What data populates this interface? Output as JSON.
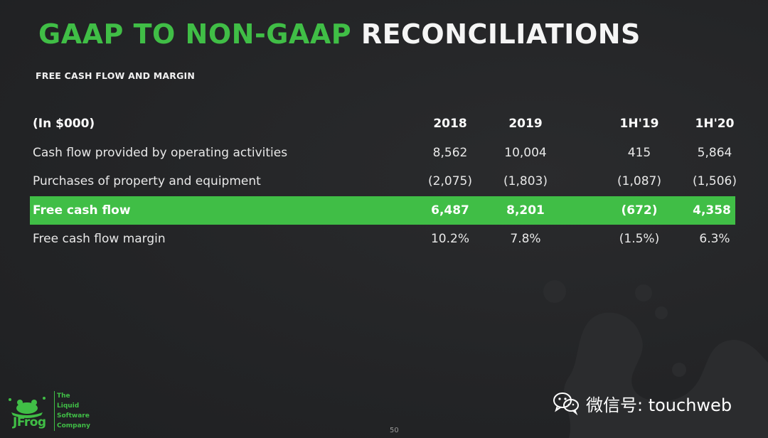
{
  "title": {
    "green_part": "GAAP TO NON-GAAP",
    "white_part": "RECONCILIATIONS"
  },
  "subtitle": "FREE CASH FLOW AND MARGIN",
  "table": {
    "header": {
      "label": "(In $000)",
      "cols": [
        "2018",
        "2019",
        "1H'19",
        "1H'20"
      ]
    },
    "rows": [
      {
        "label": "Cash flow provided by operating activities",
        "values": [
          "8,562",
          "10,004",
          "415",
          "5,864"
        ]
      },
      {
        "label": "Purchases of property and equipment",
        "values": [
          "(2,075)",
          "(1,803)",
          "(1,087)",
          "(1,506)"
        ]
      },
      {
        "label": "Free cash flow",
        "values": [
          "6,487",
          "8,201",
          "(672)",
          "4,358"
        ],
        "highlight": true
      },
      {
        "label": "Free cash flow margin",
        "values": [
          "10.2%",
          "7.8%",
          "(1.5%)",
          "6.3%"
        ]
      }
    ]
  },
  "logo": {
    "word": "JFrog",
    "tagline": [
      "The",
      "Liquid",
      "Software",
      "Company"
    ]
  },
  "page_number": "50",
  "watermark": {
    "icon": "wechat-icon",
    "text": "微信号: touchweb"
  },
  "colors": {
    "accent_green": "#40be46",
    "background": "#232426",
    "text": "#f1f1f1"
  }
}
